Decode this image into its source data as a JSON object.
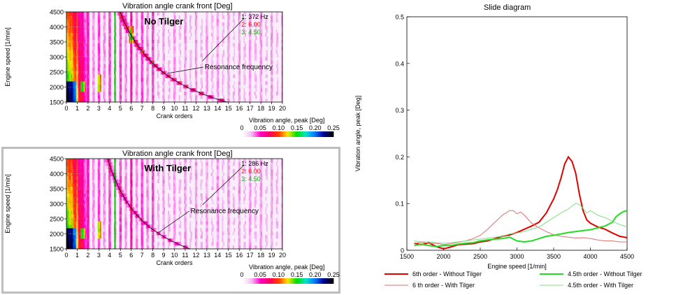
{
  "chart_data": [
    {
      "type": "heatmap",
      "title": "Vibration angle crank front [Deg]",
      "label": "No Tilger",
      "xlabel": "Crank orders",
      "ylabel": "Engine speed [1/min]",
      "x_ticks": [
        "0",
        "1",
        "2",
        "3",
        "4",
        "5",
        "6",
        "7",
        "8",
        "9",
        "10",
        "11",
        "12",
        "13",
        "14",
        "15",
        "16",
        "17",
        "18",
        "19",
        "20"
      ],
      "y_ticks": [
        "1500",
        "2000",
        "2500",
        "3000",
        "3500",
        "4000",
        "4500"
      ],
      "xlim": [
        0,
        20
      ],
      "ylim": [
        1500,
        4500
      ],
      "cursors": [
        {
          "label": "1: 372 Hz",
          "color": "#000000"
        },
        {
          "label": "2: 6.00",
          "color": "#ff0000",
          "order": 6
        },
        {
          "label": "3: 4.50",
          "color": "#00b000",
          "order": 4.5
        }
      ],
      "resonance_frequency_hz": 372,
      "annotation": "Resonance frequency",
      "colorbar": {
        "title": "Vibration angle, peak [Deg]",
        "ticks": [
          "0",
          "0.05",
          "0.10",
          "0.15",
          "0.20",
          "0.25"
        ],
        "range": [
          0,
          0.25
        ]
      }
    },
    {
      "type": "heatmap",
      "title": "Vibration angle crank front [Deg]",
      "label": "With Tilger",
      "xlabel": "Crank orders",
      "ylabel": "Engine speed [1/min]",
      "x_ticks": [
        "0",
        "1",
        "2",
        "3",
        "4",
        "5",
        "6",
        "7",
        "8",
        "9",
        "10",
        "11",
        "12",
        "13",
        "14",
        "15",
        "16",
        "17",
        "18",
        "19",
        "20"
      ],
      "y_ticks": [
        "1500",
        "2000",
        "2500",
        "3000",
        "3500",
        "4000",
        "4500"
      ],
      "xlim": [
        0,
        20
      ],
      "ylim": [
        1500,
        4500
      ],
      "cursors": [
        {
          "label": "1: 286 Hz",
          "color": "#000000"
        },
        {
          "label": "2: 6.00",
          "color": "#ff0000",
          "order": 6
        },
        {
          "label": "3: 4.50",
          "color": "#00b000",
          "order": 4.5
        }
      ],
      "resonance_frequency_hz": 286,
      "annotation": "Resonance frequency",
      "colorbar": {
        "title": "Vibration angle, peak [Deg]",
        "ticks": [
          "0",
          "0.05",
          "0.10",
          "0.15",
          "0.20",
          "0.25"
        ],
        "range": [
          0,
          0.25
        ]
      }
    },
    {
      "type": "line",
      "title": "Slide diagram",
      "xlabel": "Engine speed [1/min]",
      "ylabel": "Vibration angle, peak [Deg]",
      "xlim": [
        1500,
        4500
      ],
      "ylim": [
        0,
        0.5
      ],
      "x_ticks": [
        "1500",
        "2000",
        "2500",
        "3000",
        "3500",
        "4000",
        "4500"
      ],
      "y_ticks": [
        "0",
        "0.1",
        "0.2",
        "0.3",
        "0.4",
        "0.5"
      ],
      "legend": "bottom",
      "series": [
        {
          "name": "6th order - Without Tilger",
          "color": "#e00000",
          "width": 2,
          "x": [
            1600,
            1700,
            1800,
            1900,
            2000,
            2100,
            2200,
            2300,
            2400,
            2500,
            2600,
            2700,
            2800,
            2900,
            3000,
            3100,
            3200,
            3300,
            3400,
            3500,
            3550,
            3600,
            3650,
            3700,
            3750,
            3800,
            3850,
            3900,
            3950,
            4000,
            4100,
            4200,
            4300,
            4400,
            4500
          ],
          "y": [
            0.015,
            0.012,
            0.016,
            0.008,
            0.003,
            0.007,
            0.012,
            0.013,
            0.014,
            0.018,
            0.02,
            0.025,
            0.03,
            0.033,
            0.038,
            0.045,
            0.052,
            0.06,
            0.08,
            0.11,
            0.13,
            0.155,
            0.185,
            0.2,
            0.19,
            0.165,
            0.12,
            0.085,
            0.065,
            0.058,
            0.05,
            0.045,
            0.037,
            0.03,
            0.027
          ]
        },
        {
          "name": "6 th order - With Tilger",
          "color": "#e07070",
          "width": 1,
          "x": [
            1600,
            1700,
            1800,
            1900,
            2000,
            2100,
            2200,
            2300,
            2400,
            2500,
            2600,
            2700,
            2800,
            2900,
            2950,
            3000,
            3050,
            3100,
            3200,
            3300,
            3400,
            3500,
            3600,
            3700,
            3800,
            3900,
            4000,
            4100,
            4200,
            4300,
            4400,
            4500
          ],
          "y": [
            0.015,
            0.017,
            0.015,
            0.015,
            0.012,
            0.014,
            0.017,
            0.02,
            0.025,
            0.032,
            0.045,
            0.06,
            0.075,
            0.085,
            0.085,
            0.078,
            0.082,
            0.075,
            0.058,
            0.048,
            0.04,
            0.033,
            0.03,
            0.028,
            0.026,
            0.027,
            0.025,
            0.022,
            0.02,
            0.02,
            0.018,
            0.018
          ]
        },
        {
          "name": "4.5th order - Without Tilger",
          "color": "#22dd22",
          "width": 2,
          "x": [
            1600,
            1700,
            1800,
            1900,
            2000,
            2100,
            2200,
            2300,
            2400,
            2500,
            2600,
            2700,
            2800,
            2900,
            3000,
            3100,
            3200,
            3300,
            3400,
            3500,
            3600,
            3700,
            3800,
            3900,
            4000,
            4100,
            4200,
            4300,
            4350,
            4400,
            4450,
            4500
          ],
          "y": [
            0.01,
            0.013,
            0.01,
            0.008,
            0.01,
            0.01,
            0.013,
            0.015,
            0.016,
            0.02,
            0.022,
            0.024,
            0.025,
            0.028,
            0.02,
            0.018,
            0.02,
            0.025,
            0.03,
            0.032,
            0.035,
            0.038,
            0.04,
            0.042,
            0.044,
            0.048,
            0.052,
            0.06,
            0.072,
            0.078,
            0.083,
            0.085
          ]
        },
        {
          "name": "4.5th order - With Tilger",
          "color": "#80e080",
          "width": 1,
          "x": [
            1600,
            1700,
            1800,
            1900,
            2000,
            2100,
            2200,
            2300,
            2400,
            2500,
            2600,
            2700,
            2800,
            2900,
            3000,
            3100,
            3200,
            3300,
            3400,
            3500,
            3600,
            3700,
            3750,
            3800,
            3850,
            3900,
            3950,
            4000,
            4100,
            4200,
            4300,
            4400,
            4500
          ],
          "y": [
            0.02,
            0.018,
            0.018,
            0.016,
            0.015,
            0.016,
            0.018,
            0.02,
            0.022,
            0.024,
            0.026,
            0.028,
            0.03,
            0.035,
            0.037,
            0.04,
            0.045,
            0.05,
            0.06,
            0.07,
            0.08,
            0.088,
            0.095,
            0.1,
            0.098,
            0.09,
            0.08,
            0.085,
            0.075,
            0.07,
            0.062,
            0.055,
            0.05
          ]
        }
      ]
    }
  ]
}
